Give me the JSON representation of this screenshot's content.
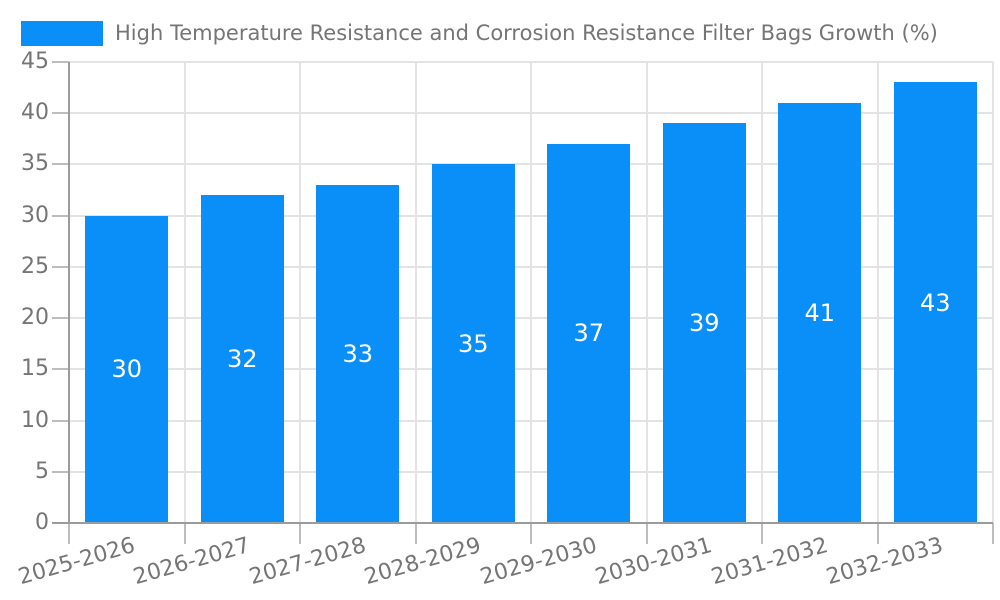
{
  "chart_data": {
    "type": "bar",
    "legend": {
      "label": "High Temperature Resistance and Corrosion Resistance Filter Bags Growth (%)",
      "position": "top-left"
    },
    "categories": [
      "2025-2026",
      "2026-2027",
      "2027-2028",
      "2028-2029",
      "2029-2030",
      "2030-2031",
      "2031-2032",
      "2032-2033"
    ],
    "series": [
      {
        "name": "High Temperature Resistance and Corrosion Resistance Filter Bags Growth (%)",
        "values": [
          30,
          32,
          33,
          35,
          37,
          39,
          41,
          43
        ]
      }
    ],
    "value_labels_shown": true,
    "xlabel": "",
    "ylabel": "",
    "ylim": [
      0,
      45
    ],
    "ytick_step": 5,
    "yticks": [
      0,
      5,
      10,
      15,
      20,
      25,
      30,
      35,
      40,
      45
    ],
    "grid": true,
    "x_label_rotation_deg": -16,
    "colors": {
      "bar": "#0A8FF8",
      "bar_value_label": "#FFFFFF",
      "axis_text": "#757575",
      "gridline": "#E3E3E3",
      "axis_line": "#9B9B9B",
      "tick": "#BDBDBD",
      "background": "#FFFFFF"
    }
  }
}
